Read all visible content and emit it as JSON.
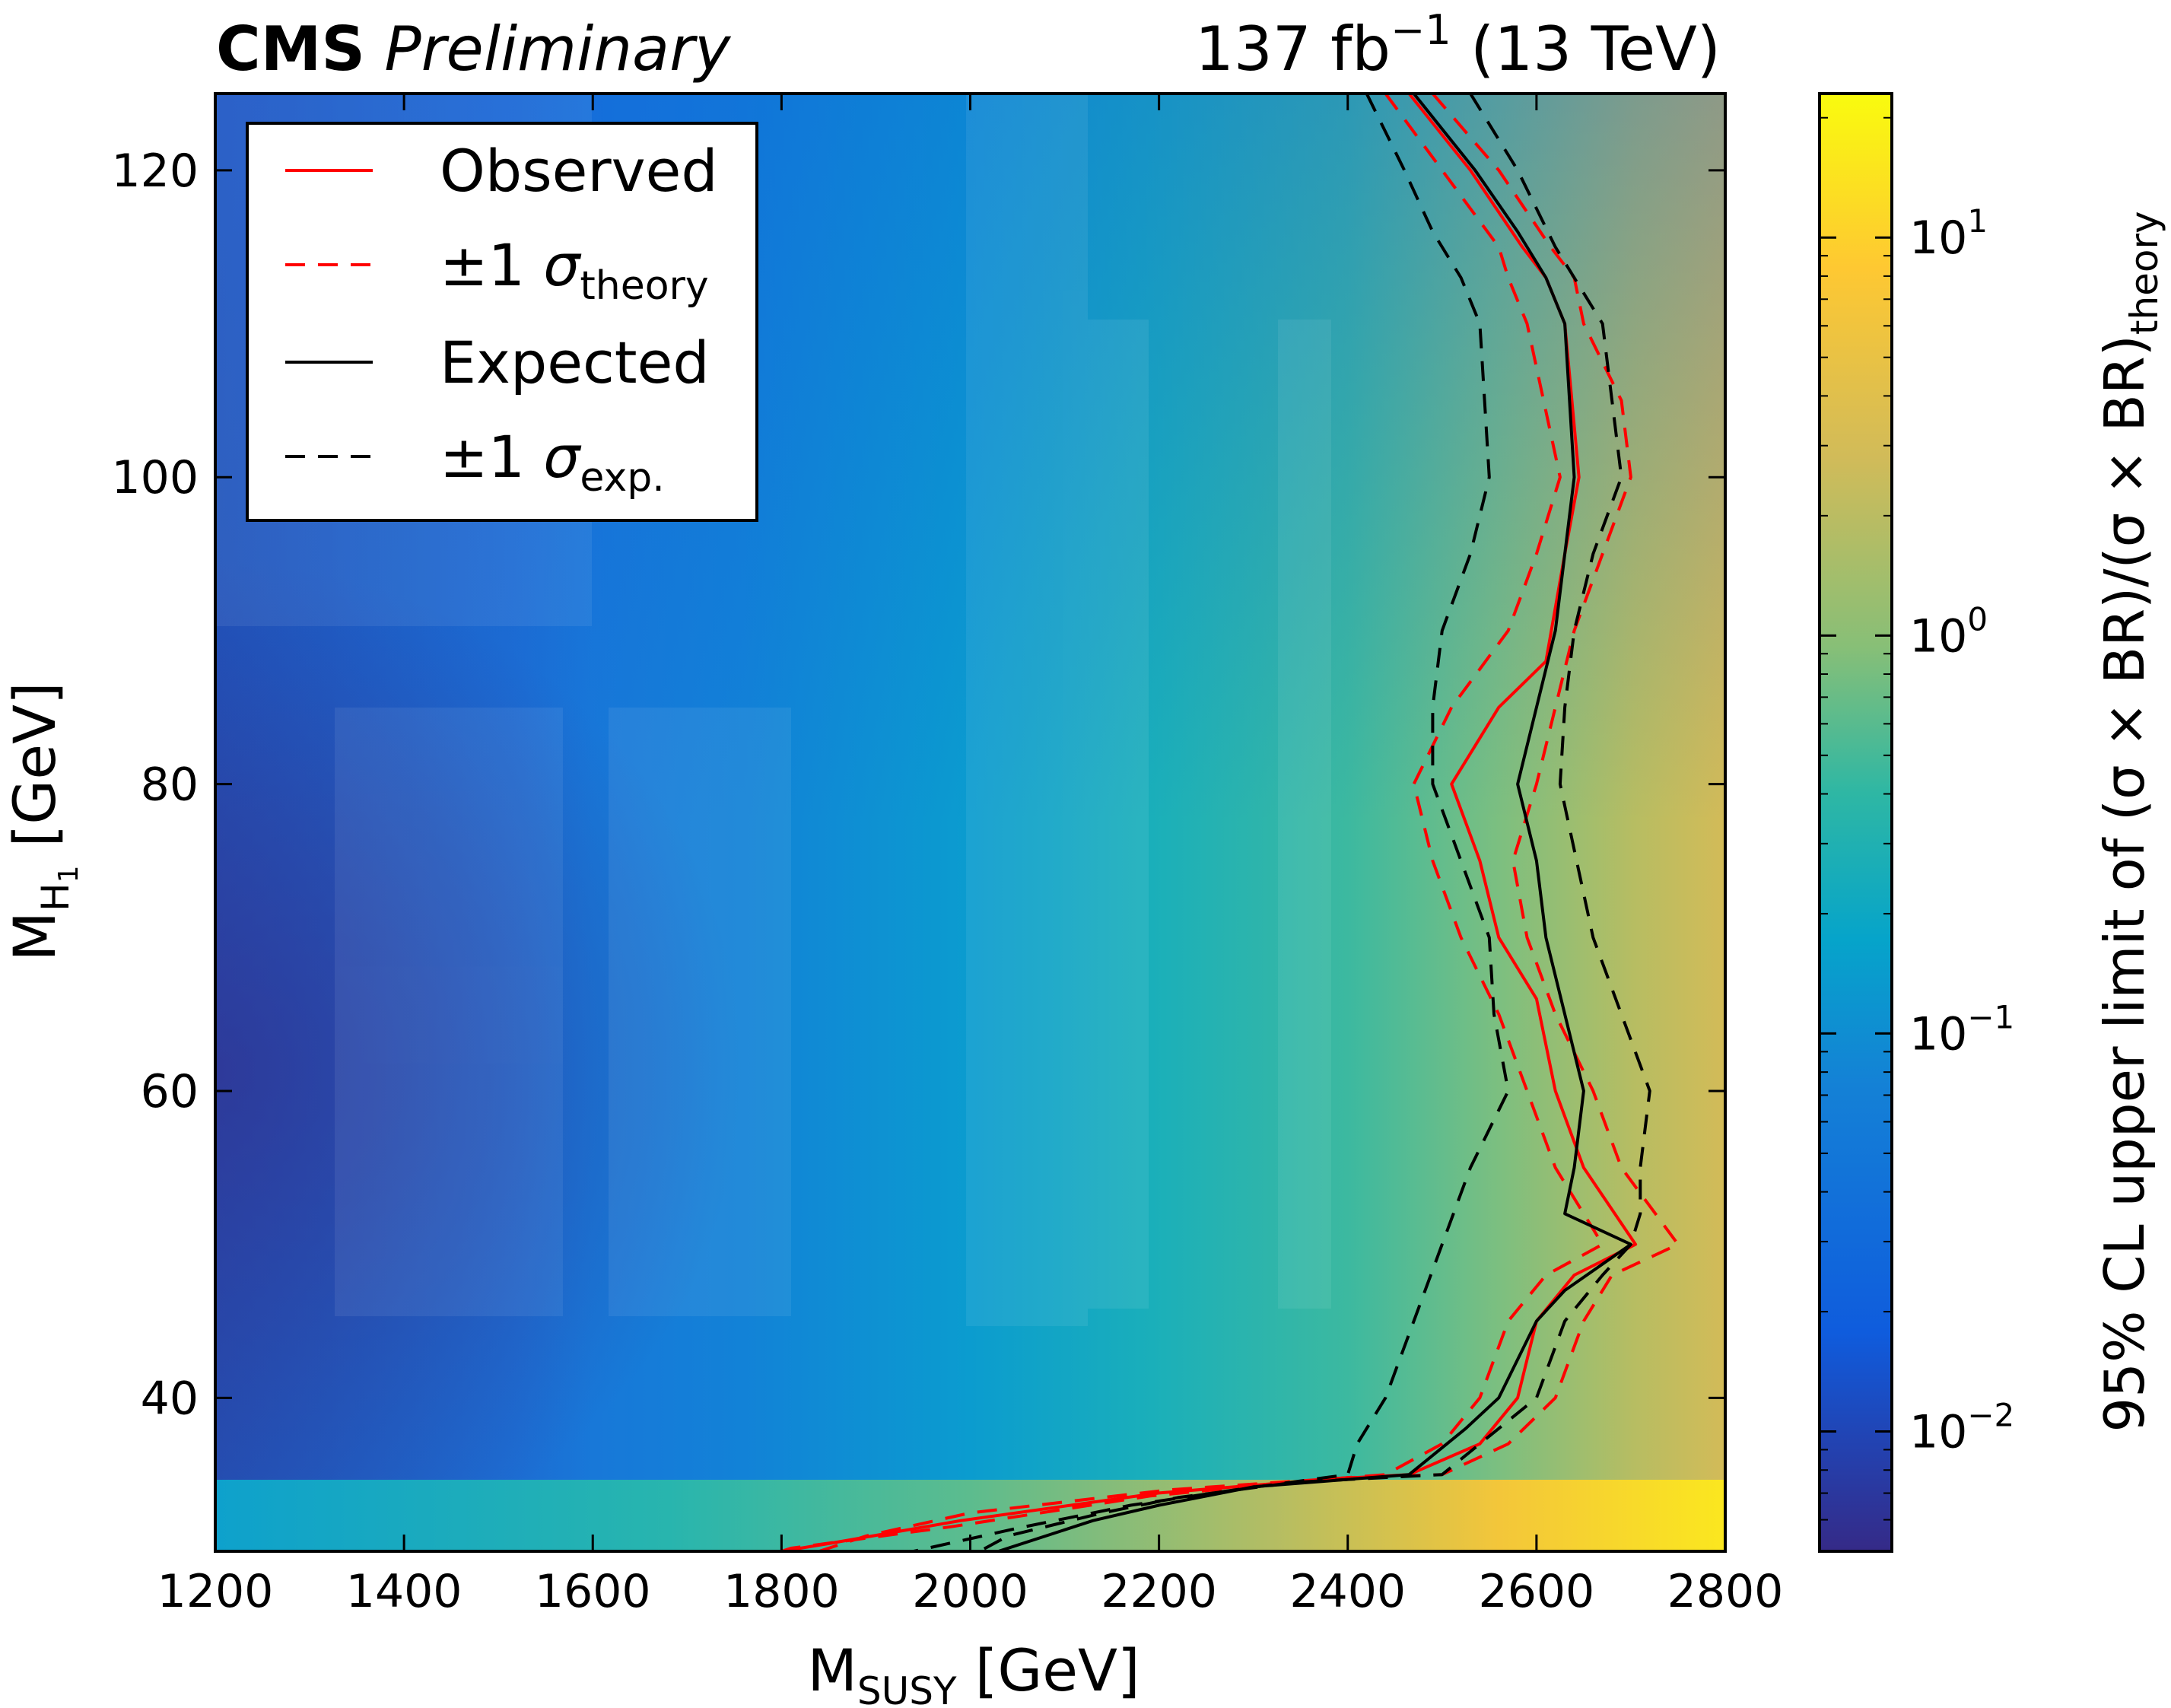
{
  "header": {
    "experiment": "CMS",
    "status": "Preliminary",
    "lumi_prefix": "137 fb",
    "lumi_exponent": "−1",
    "lumi_suffix": " (13 TeV)"
  },
  "chart_data": {
    "type": "heatmap",
    "xlabel_main": "M",
    "xlabel_sub": "SUSY",
    "xlabel_unit": " [GeV]",
    "ylabel_main": "M",
    "ylabel_sub": "H",
    "ylabel_subsub": "1",
    "ylabel_unit": " [GeV]",
    "zlabel_prefix": "95% CL upper limit of (σ × BR)/(σ × BR)",
    "zlabel_sub": "theory",
    "xlim": [
      1200,
      2800
    ],
    "ylim": [
      30,
      125
    ],
    "zlim": [
      0.005,
      23
    ],
    "z_scale": "log",
    "x_ticks": [
      "1200",
      "1400",
      "1600",
      "1800",
      "2000",
      "2200",
      "2400",
      "2600",
      "2800"
    ],
    "x_tick_values": [
      1200,
      1400,
      1600,
      1800,
      2000,
      2200,
      2400,
      2600,
      2800
    ],
    "y_ticks": [
      "40",
      "60",
      "80",
      "100",
      "120"
    ],
    "y_tick_values": [
      40,
      60,
      80,
      100,
      120
    ],
    "z_ticks": [
      {
        "value": 0.01,
        "base": "10",
        "exp": "−2"
      },
      {
        "value": 0.1,
        "base": "10",
        "exp": "−1"
      },
      {
        "value": 1,
        "base": "10",
        "exp": "0"
      },
      {
        "value": 10,
        "base": "10",
        "exp": "1"
      }
    ],
    "colormap": [
      "#352a87",
      "#0f5cdd",
      "#1481d6",
      "#06a4ca",
      "#2eb7a4",
      "#87bf77",
      "#d1bb59",
      "#fec832",
      "#f9fb0e"
    ],
    "legend": {
      "placement": "top-left",
      "entries": [
        {
          "label": "Observed",
          "color": "#ff0000",
          "dashed": false
        },
        {
          "label_prefix": "±1 ",
          "label_sigma": "σ",
          "label_sub": "theory",
          "color": "#ff0000",
          "dashed": true
        },
        {
          "label": "Expected",
          "color": "#000000",
          "dashed": false
        },
        {
          "label_prefix": "±1 ",
          "label_sigma": "σ",
          "label_sub": "exp.",
          "color": "#000000",
          "dashed": true
        }
      ]
    },
    "series": [
      {
        "name": "Observed",
        "color": "#ff0000",
        "dashed": false,
        "points": [
          [
            2465,
            125
          ],
          [
            2530,
            120
          ],
          [
            2585,
            115
          ],
          [
            2610,
            113
          ],
          [
            2630,
            110
          ],
          [
            2645,
            100
          ],
          [
            2630,
            95
          ],
          [
            2610,
            88
          ],
          [
            2560,
            85
          ],
          [
            2510,
            80
          ],
          [
            2540,
            75
          ],
          [
            2560,
            70
          ],
          [
            2600,
            66
          ],
          [
            2620,
            60
          ],
          [
            2650,
            55
          ],
          [
            2705,
            50
          ],
          [
            2640,
            48
          ],
          [
            2600,
            45
          ],
          [
            2580,
            40
          ],
          [
            2540,
            37
          ],
          [
            2465,
            35
          ],
          [
            2380,
            34.7
          ],
          [
            2200,
            33.8
          ],
          [
            1990,
            32
          ],
          [
            1850,
            30.5
          ],
          [
            1800,
            30
          ]
        ]
      },
      {
        "name": "Observed +1 σ theory",
        "color": "#ff0000",
        "dashed": true,
        "points": [
          [
            2490,
            125
          ],
          [
            2560,
            120
          ],
          [
            2615,
            115
          ],
          [
            2640,
            113
          ],
          [
            2650,
            110
          ],
          [
            2690,
            105
          ],
          [
            2700,
            100
          ],
          [
            2670,
            95
          ],
          [
            2640,
            90
          ],
          [
            2620,
            85
          ],
          [
            2600,
            80
          ],
          [
            2575,
            75
          ],
          [
            2590,
            70
          ],
          [
            2620,
            65
          ],
          [
            2660,
            60
          ],
          [
            2690,
            55
          ],
          [
            2750,
            50
          ],
          [
            2680,
            48
          ],
          [
            2650,
            45
          ],
          [
            2620,
            40
          ],
          [
            2570,
            37
          ],
          [
            2500,
            35
          ],
          [
            2400,
            34.8
          ],
          [
            2210,
            34
          ],
          [
            2000,
            32.5
          ],
          [
            1890,
            31
          ],
          [
            1840,
            30
          ]
        ]
      },
      {
        "name": "Observed −1 σ theory",
        "color": "#ff0000",
        "dashed": true,
        "points": [
          [
            2440,
            125
          ],
          [
            2500,
            120
          ],
          [
            2560,
            115
          ],
          [
            2570,
            113
          ],
          [
            2590,
            110
          ],
          [
            2625,
            100
          ],
          [
            2600,
            95
          ],
          [
            2570,
            90
          ],
          [
            2510,
            85
          ],
          [
            2470,
            80
          ],
          [
            2490,
            75
          ],
          [
            2520,
            70
          ],
          [
            2560,
            65
          ],
          [
            2590,
            60
          ],
          [
            2620,
            55
          ],
          [
            2670,
            50
          ],
          [
            2610,
            48
          ],
          [
            2570,
            45
          ],
          [
            2540,
            40
          ],
          [
            2500,
            37
          ],
          [
            2440,
            35
          ],
          [
            2360,
            34.6
          ],
          [
            2190,
            33.6
          ],
          [
            1980,
            31.6
          ],
          [
            1810,
            30.2
          ],
          [
            1800,
            30
          ]
        ]
      },
      {
        "name": "Expected",
        "color": "#000000",
        "dashed": false,
        "points": [
          [
            2470,
            125
          ],
          [
            2535,
            120
          ],
          [
            2580,
            116
          ],
          [
            2610,
            113
          ],
          [
            2630,
            110
          ],
          [
            2640,
            100
          ],
          [
            2620,
            90
          ],
          [
            2600,
            85
          ],
          [
            2580,
            80
          ],
          [
            2600,
            75
          ],
          [
            2610,
            70
          ],
          [
            2630,
            65
          ],
          [
            2650,
            60
          ],
          [
            2640,
            55
          ],
          [
            2630,
            52
          ],
          [
            2700,
            50
          ],
          [
            2630,
            47
          ],
          [
            2600,
            45
          ],
          [
            2560,
            40
          ],
          [
            2525,
            38
          ],
          [
            2465,
            35
          ],
          [
            2300,
            34.2
          ],
          [
            2200,
            33
          ],
          [
            2130,
            32
          ],
          [
            2030,
            30
          ]
        ]
      },
      {
        "name": "Expected +1 σ exp.",
        "color": "#000000",
        "dashed": true,
        "points": [
          [
            2530,
            125
          ],
          [
            2580,
            120
          ],
          [
            2620,
            115
          ],
          [
            2650,
            112
          ],
          [
            2670,
            110
          ],
          [
            2690,
            100
          ],
          [
            2660,
            95
          ],
          [
            2640,
            90
          ],
          [
            2630,
            85
          ],
          [
            2625,
            80
          ],
          [
            2660,
            70
          ],
          [
            2690,
            65
          ],
          [
            2720,
            60
          ],
          [
            2710,
            55
          ],
          [
            2710,
            52
          ],
          [
            2700,
            50
          ],
          [
            2670,
            48
          ],
          [
            2630,
            45
          ],
          [
            2600,
            40
          ],
          [
            2540,
            37
          ],
          [
            2500,
            35
          ],
          [
            2345,
            34.5
          ],
          [
            2220,
            33.5
          ],
          [
            2140,
            32.5
          ],
          [
            2040,
            31
          ],
          [
            2010,
            30
          ]
        ]
      },
      {
        "name": "Expected −1 σ exp.",
        "color": "#000000",
        "dashed": true,
        "points": [
          [
            2420,
            125
          ],
          [
            2460,
            120
          ],
          [
            2490,
            116
          ],
          [
            2520,
            113
          ],
          [
            2540,
            110
          ],
          [
            2550,
            100
          ],
          [
            2530,
            95
          ],
          [
            2500,
            90
          ],
          [
            2490,
            85
          ],
          [
            2490,
            80
          ],
          [
            2520,
            75
          ],
          [
            2550,
            70
          ],
          [
            2555,
            65
          ],
          [
            2570,
            60
          ],
          [
            2530,
            55
          ],
          [
            2500,
            50
          ],
          [
            2470,
            45
          ],
          [
            2440,
            40
          ],
          [
            2410,
            37
          ],
          [
            2400,
            35
          ],
          [
            2280,
            34
          ],
          [
            2170,
            33
          ],
          [
            2050,
            31.5
          ],
          [
            1940,
            30
          ]
        ]
      }
    ]
  }
}
